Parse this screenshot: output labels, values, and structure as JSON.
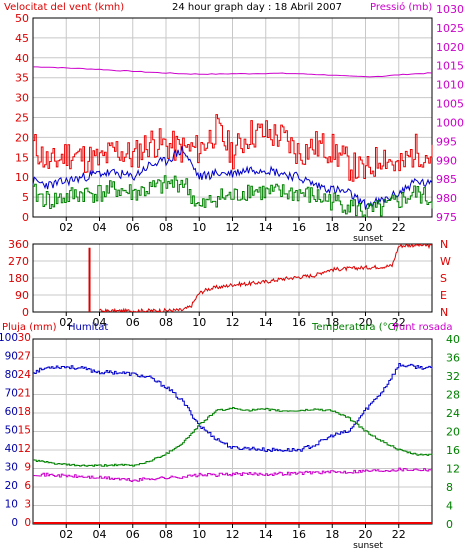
{
  "title": "24 hour graph day : 18 Abril 2007",
  "x_ticks": [
    "02",
    "04",
    "06",
    "08",
    "10",
    "12",
    "14",
    "16",
    "18",
    "20",
    "22"
  ],
  "x_grid_hours": [
    2,
    4,
    6,
    8,
    10,
    12,
    14,
    16,
    18,
    20,
    22
  ],
  "sunset_label": "sunset",
  "colors": {
    "wind_speed": "#ee0000",
    "gust": "#ee0000",
    "wind_avg": "#0000cc",
    "wind_low": "#008000",
    "pressure": "#cc00cc",
    "direction": "#dd0000",
    "humidity": "#0000cc",
    "temperature": "#008000",
    "dewpoint": "#cc00cc",
    "rain": "#ee0000",
    "grid": "#c8c8c8",
    "text_red": "#dd0000",
    "text_magenta": "#cc00cc",
    "text_blue": "#0000aa",
    "text_green": "#008000"
  },
  "chart_data": [
    {
      "type": "line",
      "id": "wind-pressure",
      "title": "24 hour graph day : 18 Abril 2007",
      "y_left_label": "Velocitat del vent (kmh)",
      "y_right_label": "Pressió (mb)",
      "x_range_hours": [
        0,
        24
      ],
      "ylim_left": [
        0,
        50
      ],
      "ylim_right": [
        975,
        1030
      ],
      "yticks_left": [
        "50",
        "45",
        "40",
        "35",
        "30",
        "25",
        "20",
        "15",
        "10",
        "5",
        "0"
      ],
      "yticks_right": [
        "1030",
        "1025",
        "1020",
        "1015",
        "1010",
        "1005",
        "1000",
        "995",
        "990",
        "985",
        "980",
        "975"
      ],
      "series": [
        {
          "axis": "right",
          "x": [
            0,
            1,
            2,
            3,
            4,
            5,
            6,
            7,
            8,
            9,
            10,
            11,
            12,
            13,
            14,
            15,
            16,
            17,
            18,
            19,
            20,
            21,
            22,
            23,
            24
          ],
          "values": [
            1016.5,
            1016.4,
            1016.2,
            1016.0,
            1015.8,
            1015.5,
            1015.3,
            1015.0,
            1014.8,
            1014.6,
            1014.5,
            1014.5,
            1014.6,
            1014.6,
            1014.7,
            1014.7,
            1014.6,
            1014.4,
            1014.2,
            1013.9,
            1013.8,
            1013.9,
            1014.3,
            1014.6,
            1014.8
          ]
        },
        {
          "axis": "left",
          "x": [
            0,
            1,
            2,
            3,
            4,
            5,
            6,
            7,
            8,
            9,
            10,
            11,
            12,
            13,
            14,
            15,
            16,
            17,
            18,
            19,
            20,
            21,
            22,
            23,
            24
          ],
          "values": [
            18,
            13,
            16,
            15,
            14,
            17,
            15,
            19,
            18,
            17,
            17,
            22,
            16,
            21,
            21,
            20,
            16,
            18,
            17,
            13,
            11,
            16,
            12,
            17,
            15
          ]
        },
        {
          "axis": "left",
          "x": [
            0,
            1,
            2,
            3,
            4,
            5,
            6,
            7,
            8,
            9,
            10,
            11,
            12,
            13,
            14,
            15,
            16,
            17,
            18,
            19,
            20,
            21,
            22,
            23,
            24
          ],
          "values": [
            9,
            8,
            9,
            10,
            11,
            11,
            10,
            13,
            14,
            17,
            10,
            11,
            11,
            12,
            12,
            11,
            10,
            8,
            7,
            6,
            3,
            4,
            6,
            9,
            8
          ]
        },
        {
          "axis": "left",
          "x": [
            0,
            1,
            2,
            3,
            4,
            5,
            6,
            7,
            8,
            9,
            10,
            11,
            12,
            13,
            14,
            15,
            16,
            17,
            18,
            19,
            20,
            21,
            22,
            23,
            24
          ],
          "values": [
            6,
            4,
            5,
            6,
            6,
            7,
            6,
            7,
            8,
            9,
            2,
            5,
            5,
            7,
            6,
            6,
            6,
            5,
            4,
            3,
            1,
            2,
            4,
            6,
            4
          ]
        }
      ]
    },
    {
      "type": "line",
      "id": "wind-direction",
      "x_range_hours": [
        0,
        24
      ],
      "ylim": [
        0,
        360
      ],
      "yticks_left": [
        "360",
        "270",
        "180",
        "90",
        "0"
      ],
      "yticks_right": [
        "N",
        "W",
        "S",
        "E",
        "N"
      ],
      "spike": {
        "x": 3.4,
        "value": 340
      },
      "series": [
        {
          "x": [
            4,
            5,
            6,
            7,
            8,
            9,
            9.5,
            10,
            10.5,
            11,
            11.5,
            12,
            13,
            14,
            15,
            16,
            17,
            17.5,
            18,
            19,
            20,
            21,
            21.6,
            22,
            23,
            24
          ],
          "values": [
            5,
            5,
            6,
            7,
            8,
            10,
            30,
            100,
            120,
            130,
            135,
            145,
            150,
            160,
            175,
            185,
            195,
            215,
            225,
            230,
            235,
            240,
            245,
            350,
            355,
            350
          ]
        }
      ]
    },
    {
      "type": "line",
      "id": "humidity-temperature",
      "y_left_label_1": "Pluja (mm)",
      "y_left_label_2": "Humitat",
      "y_right_label_1": "Temperatura (°C)",
      "y_right_label_2": "Punt rosada",
      "x_range_hours": [
        0,
        24
      ],
      "ylim_rain": [
        0,
        30
      ],
      "ylim_humidity": [
        0,
        100
      ],
      "ylim_temperature": [
        0,
        40
      ],
      "yticks_left_humidity": [
        "100",
        "90",
        "80",
        "70",
        "60",
        "50",
        "40",
        "30",
        "20",
        "10",
        "0"
      ],
      "yticks_left_rain": [
        "30",
        "27",
        "24",
        "21",
        "18",
        "15",
        "12",
        "9",
        "6",
        "3",
        "0"
      ],
      "yticks_right": [
        "40",
        "36",
        "32",
        "28",
        "24",
        "20",
        "16",
        "12",
        "8",
        "4",
        "0"
      ],
      "series": [
        {
          "x": [
            0,
            1,
            2,
            3,
            4,
            5,
            6,
            7,
            8,
            9,
            10,
            11,
            12,
            13,
            14,
            15,
            16,
            17,
            18,
            19,
            20,
            21,
            22,
            23,
            24
          ],
          "values": [
            82,
            85,
            85,
            84,
            82,
            82,
            81,
            79,
            74,
            66,
            53,
            46,
            41,
            41,
            40,
            40,
            40,
            43,
            48,
            50,
            62,
            72,
            86,
            85,
            84
          ]
        },
        {
          "x": [
            0,
            1,
            2,
            3,
            4,
            5,
            6,
            7,
            8,
            9,
            10,
            11,
            12,
            13,
            14,
            15,
            16,
            17,
            18,
            19,
            20,
            21,
            22,
            23,
            24
          ],
          "values": [
            13.8,
            13.2,
            12.8,
            12.6,
            12.6,
            12.8,
            12.6,
            13.6,
            15.2,
            17.6,
            21.5,
            24.5,
            25.0,
            24.6,
            24.8,
            24.4,
            24.5,
            24.8,
            24.5,
            22.8,
            20.0,
            17.8,
            16.0,
            15.0,
            15.0
          ]
        },
        {
          "x": [
            0,
            1,
            2,
            3,
            4,
            5,
            6,
            7,
            8,
            9,
            10,
            11,
            12,
            13,
            14,
            15,
            16,
            17,
            18,
            19,
            20,
            21,
            22,
            23,
            24
          ],
          "values": [
            10.8,
            10.6,
            10.4,
            10.2,
            10.0,
            9.8,
            9.4,
            9.8,
            10.0,
            10.2,
            10.6,
            10.6,
            10.8,
            10.8,
            10.8,
            10.9,
            11.0,
            11.2,
            11.2,
            11.3,
            11.5,
            11.6,
            11.8,
            11.8,
            11.8
          ]
        },
        {
          "x": [
            0,
            24
          ],
          "values": [
            0,
            0
          ]
        }
      ]
    }
  ]
}
